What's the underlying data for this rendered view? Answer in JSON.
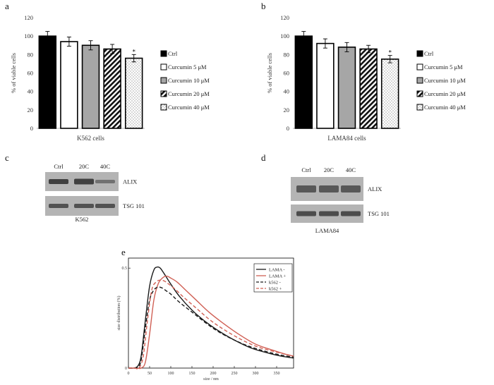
{
  "panel_letters": [
    "a",
    "b",
    "c",
    "d",
    "e"
  ],
  "chart_data": [
    {
      "type": "bar",
      "panel": "a",
      "title": "",
      "xlabel": "K562 cells",
      "ylabel": "% of viable cells",
      "ylim": [
        0,
        120
      ],
      "yticks": [
        0,
        20,
        40,
        60,
        80,
        100,
        120
      ],
      "categories": [
        "Ctrl",
        "Curcumin 5 μM",
        "Curcumin 10 μM",
        "Curcumin 20 μM",
        "Curcumin 40 μM"
      ],
      "values": [
        100,
        94,
        90,
        86,
        76
      ],
      "errors": [
        5,
        5,
        5,
        5,
        4
      ],
      "fills": [
        "black",
        "white",
        "gray",
        "diagonal-stripes",
        "dots"
      ],
      "significance": [
        "",
        "",
        "",
        "",
        "*"
      ],
      "legend": [
        "Ctrl",
        "Curcumin 5 μM",
        "Curcumin 10 μM",
        "Curcumin 20 μM",
        "Curcumin 40 μM"
      ],
      "legend_position": "right"
    },
    {
      "type": "bar",
      "panel": "b",
      "title": "",
      "xlabel": "LAMA84 cells",
      "ylabel": "% of viable cells",
      "ylim": [
        0,
        120
      ],
      "yticks": [
        0,
        20,
        40,
        60,
        80,
        100,
        120
      ],
      "categories": [
        "Ctrl",
        "Curcumin 5 μM",
        "Curcumin 10 μM",
        "Curcumin 20 μM",
        "Curcumin 40 μM"
      ],
      "values": [
        100,
        92,
        88,
        86,
        75
      ],
      "errors": [
        5,
        5,
        5,
        4,
        4
      ],
      "fills": [
        "black",
        "white",
        "gray",
        "diagonal-stripes",
        "dots"
      ],
      "significance": [
        "",
        "",
        "",
        "",
        "*"
      ],
      "legend": [
        "Ctrl",
        "Curcumin 5 μM",
        "Curcumin 10 μM",
        "Curcumin 20 μM",
        "Curcumin 40 μM"
      ],
      "legend_position": "right"
    },
    {
      "type": "line",
      "panel": "e",
      "title": "",
      "xlabel": "size / nm",
      "ylabel": "size distribution (%)",
      "xlim": [
        0,
        390
      ],
      "ylim": [
        0,
        0.55
      ],
      "xticks": [
        0,
        50,
        100,
        150,
        200,
        250,
        300,
        350
      ],
      "yticks": [
        0,
        0.5
      ],
      "legend_position": "top-right",
      "series": [
        {
          "name": "LAMA -",
          "color": "#1a1a1a",
          "dash": "solid",
          "x": [
            0,
            12,
            22,
            30,
            40,
            50,
            60,
            68,
            75,
            85,
            100,
            120,
            150,
            180,
            210,
            250,
            290,
            330,
            360,
            390
          ],
          "y": [
            0,
            0,
            0.01,
            0.06,
            0.24,
            0.41,
            0.49,
            0.505,
            0.5,
            0.47,
            0.42,
            0.36,
            0.29,
            0.235,
            0.19,
            0.14,
            0.1,
            0.075,
            0.06,
            0.05
          ]
        },
        {
          "name": "LAMA +",
          "color": "#d06055",
          "dash": "solid",
          "x": [
            0,
            20,
            30,
            40,
            50,
            60,
            70,
            80,
            90,
            100,
            115,
            135,
            160,
            190,
            220,
            260,
            300,
            340,
            370,
            390
          ],
          "y": [
            0,
            0,
            0.0,
            0.03,
            0.17,
            0.34,
            0.42,
            0.45,
            0.46,
            0.45,
            0.43,
            0.39,
            0.34,
            0.28,
            0.23,
            0.17,
            0.12,
            0.09,
            0.07,
            0.06
          ]
        },
        {
          "name": "k562 -",
          "color": "#1a1a1a",
          "dash": "dashed",
          "x": [
            0,
            12,
            22,
            30,
            40,
            50,
            60,
            70,
            80,
            90,
            100,
            120,
            150,
            180,
            210,
            250,
            290,
            330,
            360,
            390
          ],
          "y": [
            0,
            0,
            0.005,
            0.04,
            0.2,
            0.34,
            0.39,
            0.405,
            0.4,
            0.385,
            0.37,
            0.33,
            0.28,
            0.23,
            0.185,
            0.14,
            0.105,
            0.08,
            0.065,
            0.055
          ]
        },
        {
          "name": "k562 +",
          "color": "#d06055",
          "dash": "dashed",
          "x": [
            0,
            15,
            25,
            35,
            45,
            55,
            65,
            75,
            85,
            95,
            110,
            130,
            160,
            190,
            220,
            260,
            300,
            340,
            370,
            390
          ],
          "y": [
            0,
            0,
            0.0,
            0.06,
            0.24,
            0.39,
            0.43,
            0.44,
            0.435,
            0.42,
            0.395,
            0.355,
            0.3,
            0.245,
            0.2,
            0.15,
            0.11,
            0.085,
            0.07,
            0.06
          ]
        }
      ]
    }
  ],
  "blots": [
    {
      "panel": "c",
      "lanes": [
        "Ctrl",
        "20C",
        "40C"
      ],
      "rows": [
        "ALIX",
        "TSG 101"
      ],
      "cell_line": "K562"
    },
    {
      "panel": "d",
      "lanes": [
        "Ctrl",
        "20C",
        "40C"
      ],
      "rows": [
        "ALIX",
        "TSG 101"
      ],
      "cell_line": "LAMA84"
    }
  ],
  "colors": {
    "axis": "#b0b0b0",
    "bar_gray": "#a6a6a6",
    "blot_bg": "#b4b4b4",
    "blot_band": "#3a3a3a"
  }
}
